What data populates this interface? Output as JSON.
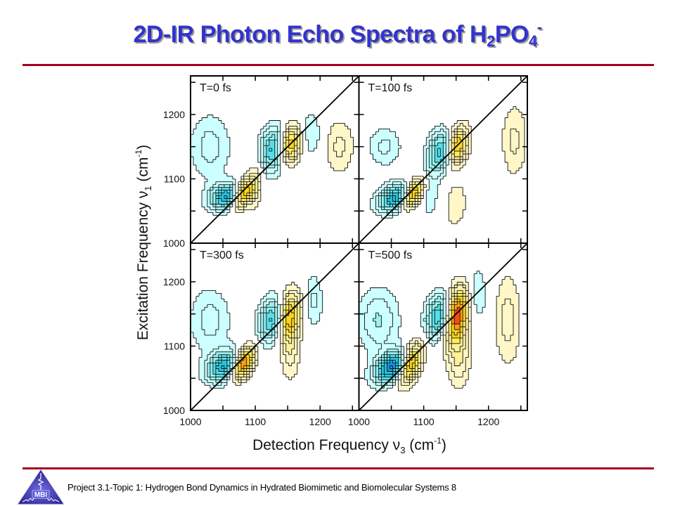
{
  "slide": {
    "title_parts": {
      "main": "2D-IR Photon Echo Spectra of H",
      "sub1": "2",
      "mid": "PO",
      "sub2": "4",
      "sup": "-"
    },
    "footer": "Project 3.1-Topic 1: Hydrogen Bond Dynamics in Hydrated Biomimetic and Biomolecular Systems 8",
    "logo_text": "MBI",
    "colors": {
      "title": "#3333cc",
      "rule": "#a50021",
      "logo": "#3a2fa0"
    }
  },
  "chart_data": {
    "type": "heatmap",
    "subtype": "2D contour plot grid (2x2)",
    "title": "2D-IR Photon Echo Spectra of H2PO4-",
    "xlabel": {
      "main": "Detection Frequency ν",
      "sub": "3",
      "unit_pre": " (cm",
      "unit_sup": "-1",
      "unit_post": ")"
    },
    "ylabel": {
      "main": "Excitation Frequency ν",
      "sub": "1",
      "unit_pre": " (cm",
      "unit_sup": "-1",
      "unit_post": ")"
    },
    "xlim": [
      1000,
      1260
    ],
    "ylim": [
      1000,
      1260
    ],
    "xticks": [
      1000,
      1100,
      1200
    ],
    "yticks": [
      1000,
      1100,
      1200
    ],
    "diagonal_line": true,
    "colorscale": {
      "negative": [
        "#ccffff",
        "#99f2f2",
        "#55e0ea",
        "#22c4e0",
        "#1f8fe0",
        "#2255dd"
      ],
      "positive": [
        "#fff7c8",
        "#fff09a",
        "#ffee55",
        "#ffd21e",
        "#ff9a10",
        "#ff4a10",
        "#e81010"
      ]
    },
    "panels": [
      {
        "label": "T=0 fs",
        "position": "top-left",
        "peaks": [
          {
            "x": 1060,
            "y": 1072,
            "sx": 20,
            "sy": 14,
            "amp": -0.75,
            "tilt": 0.1
          },
          {
            "x": 1080,
            "y": 1075,
            "sx": 12,
            "sy": 14,
            "amp": 1.0,
            "tilt": 0.5
          },
          {
            "x": 1130,
            "y": 1145,
            "sx": 15,
            "sy": 24,
            "amp": -0.6,
            "tilt": 0.2
          },
          {
            "x": 1152,
            "y": 1152,
            "sx": 13,
            "sy": 20,
            "amp": 0.7,
            "tilt": 0.4
          },
          {
            "x": 1030,
            "y": 1150,
            "sx": 22,
            "sy": 35,
            "amp": -0.2,
            "tilt": 0
          },
          {
            "x": 1100,
            "y": 1090,
            "sx": 8,
            "sy": 30,
            "amp": 0.18,
            "tilt": 0
          },
          {
            "x": 1185,
            "y": 1170,
            "sx": 12,
            "sy": 25,
            "amp": -0.18,
            "tilt": 0
          },
          {
            "x": 1230,
            "y": 1150,
            "sx": 16,
            "sy": 30,
            "amp": 0.18,
            "tilt": 0
          }
        ]
      },
      {
        "label": "T=100 fs",
        "position": "top-right",
        "peaks": [
          {
            "x": 1060,
            "y": 1070,
            "sx": 20,
            "sy": 14,
            "amp": -0.75,
            "tilt": 0.2
          },
          {
            "x": 1082,
            "y": 1075,
            "sx": 12,
            "sy": 13,
            "amp": 1.0,
            "tilt": 0.6
          },
          {
            "x": 1128,
            "y": 1142,
            "sx": 14,
            "sy": 22,
            "amp": -0.6,
            "tilt": 0.3
          },
          {
            "x": 1150,
            "y": 1150,
            "sx": 12,
            "sy": 20,
            "amp": 0.7,
            "tilt": 0.5
          },
          {
            "x": 1040,
            "y": 1150,
            "sx": 18,
            "sy": 22,
            "amp": -0.18,
            "tilt": 0
          },
          {
            "x": 1110,
            "y": 1080,
            "sx": 8,
            "sy": 30,
            "amp": -0.15,
            "tilt": 0
          },
          {
            "x": 1240,
            "y": 1160,
            "sx": 14,
            "sy": 40,
            "amp": 0.18,
            "tilt": 0
          },
          {
            "x": 1150,
            "y": 1060,
            "sx": 12,
            "sy": 25,
            "amp": 0.15,
            "tilt": 0.3
          }
        ]
      },
      {
        "label": "T=300 fs",
        "position": "bottom-left",
        "peaks": [
          {
            "x": 1055,
            "y": 1068,
            "sx": 20,
            "sy": 16,
            "amp": -0.7,
            "tilt": 0.2
          },
          {
            "x": 1080,
            "y": 1072,
            "sx": 13,
            "sy": 15,
            "amp": 1.0,
            "tilt": 0.6
          },
          {
            "x": 1128,
            "y": 1140,
            "sx": 15,
            "sy": 24,
            "amp": -0.6,
            "tilt": 0.3
          },
          {
            "x": 1150,
            "y": 1145,
            "sx": 13,
            "sy": 25,
            "amp": 0.75,
            "tilt": 0.5
          },
          {
            "x": 1030,
            "y": 1140,
            "sx": 22,
            "sy": 35,
            "amp": -0.2,
            "tilt": 0
          },
          {
            "x": 1190,
            "y": 1170,
            "sx": 10,
            "sy": 30,
            "amp": -0.18,
            "tilt": 0
          },
          {
            "x": 1155,
            "y": 1090,
            "sx": 10,
            "sy": 30,
            "amp": 0.2,
            "tilt": 0.3
          }
        ]
      },
      {
        "label": "T=500 fs",
        "position": "bottom-right",
        "peaks": [
          {
            "x": 1055,
            "y": 1068,
            "sx": 20,
            "sy": 16,
            "amp": -0.9,
            "tilt": 0.3
          },
          {
            "x": 1078,
            "y": 1072,
            "sx": 13,
            "sy": 18,
            "amp": 1.0,
            "tilt": 0.7
          },
          {
            "x": 1125,
            "y": 1145,
            "sx": 14,
            "sy": 24,
            "amp": -0.65,
            "tilt": 0.3
          },
          {
            "x": 1150,
            "y": 1148,
            "sx": 14,
            "sy": 28,
            "amp": 0.9,
            "tilt": 0.7
          },
          {
            "x": 1030,
            "y": 1140,
            "sx": 22,
            "sy": 35,
            "amp": -0.25,
            "tilt": 0
          },
          {
            "x": 1180,
            "y": 1180,
            "sx": 12,
            "sy": 30,
            "amp": -0.2,
            "tilt": 0
          },
          {
            "x": 1230,
            "y": 1140,
            "sx": 14,
            "sy": 50,
            "amp": 0.2,
            "tilt": 0
          },
          {
            "x": 1155,
            "y": 1080,
            "sx": 12,
            "sy": 30,
            "amp": 0.25,
            "tilt": 0.3
          }
        ]
      }
    ]
  }
}
